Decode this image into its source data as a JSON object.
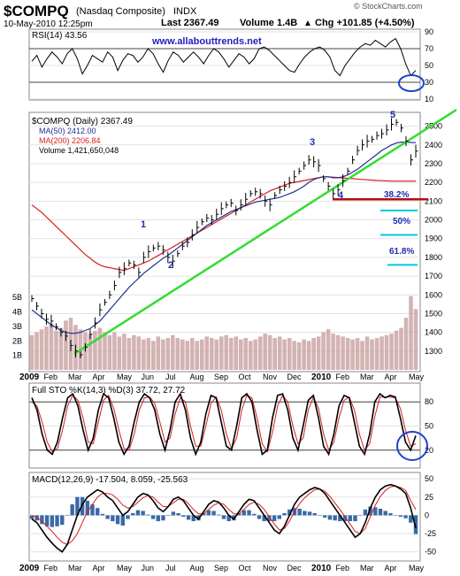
{
  "header": {
    "title": "$COMPQ",
    "subtitle": "(Nasdaq Composite)",
    "exchange": "INDX",
    "date": "10-May-2010 12:25pm",
    "last": "Last 2367.49",
    "volume": "Volume 1.4B",
    "change": "Chg +101.85 (+4.50%)",
    "change_dir": "▲",
    "watermark": "© StockCharts.com"
  },
  "colors": {
    "price": "#000000",
    "ma50": "#1f2f8f",
    "ma200": "#d42020",
    "trendline": "#33dd33",
    "fib": "#00c8e8",
    "support": "#b01010",
    "volume": "#c8a0a0",
    "macd_hist": "#3a6aa6",
    "url": "#2020c0",
    "circle": "#2040d0"
  },
  "chart_data": [
    {
      "type": "line",
      "name": "rsi-panel",
      "title": "RSI(14) 43.56",
      "ylim": [
        10,
        90
      ],
      "ticks": [
        "90",
        "70",
        "50",
        "30",
        "10"
      ],
      "ref_lines": [
        70,
        30
      ],
      "url_label": "www.allabouttrends.net",
      "series": [
        {
          "values": [
            55,
            62,
            48,
            58,
            66,
            60,
            52,
            64,
            70,
            58,
            40,
            50,
            62,
            58,
            54,
            66,
            60,
            44,
            56,
            64,
            62,
            54,
            60,
            70,
            64,
            52,
            42,
            56,
            66,
            62,
            54,
            60,
            66,
            60,
            52,
            62,
            70,
            66,
            58,
            48,
            56,
            64,
            60,
            52,
            58,
            70,
            72,
            68,
            62,
            56,
            50,
            44,
            42,
            52,
            60,
            66,
            70,
            72,
            68,
            60,
            44,
            38,
            50,
            58,
            66,
            72,
            76,
            74,
            80,
            76,
            72,
            78,
            82,
            70,
            52,
            38,
            44
          ]
        }
      ]
    },
    {
      "type": "line",
      "name": "price-panel",
      "title": "$COMPQ (Daily) 2367.49",
      "legend": [
        "MA(50) 2412.00",
        "MA(200) 2206.84",
        "Volume 1,421,650,048"
      ],
      "ylim": [
        1200,
        2550
      ],
      "ticks": [
        "2500",
        "2400",
        "2300",
        "2200",
        "2100",
        "2000",
        "1900",
        "1800",
        "1700",
        "1600",
        "1500",
        "1400",
        "1300"
      ],
      "volume_ticks": [
        "5B",
        "4B",
        "3B",
        "2B",
        "1B"
      ],
      "x_labels": [
        "2009",
        "Feb",
        "Mar",
        "Apr",
        "May",
        "Jun",
        "Jul",
        "Aug",
        "Sep",
        "Oct",
        "Nov",
        "Dec",
        "2010",
        "Feb",
        "Mar",
        "Apr",
        "May"
      ],
      "wave_labels": [
        "1",
        "2",
        "3",
        "4",
        "5"
      ],
      "fib_labels": [
        "38.2%",
        "50%",
        "61.8%"
      ],
      "fib_levels": [
        2050,
        1920,
        1760
      ],
      "support_level": 2110,
      "trendline": [
        [
          1290,
          "Mar"
        ],
        [
          2560,
          "May"
        ]
      ],
      "series": [
        {
          "name": "$COMPQ",
          "values": [
            1580,
            1540,
            1500,
            1470,
            1460,
            1430,
            1400,
            1380,
            1330,
            1300,
            1280,
            1320,
            1390,
            1450,
            1520,
            1560,
            1600,
            1650,
            1720,
            1740,
            1770,
            1760,
            1720,
            1800,
            1830,
            1850,
            1860,
            1840,
            1800,
            1780,
            1820,
            1860,
            1880,
            1920,
            1960,
            1990,
            2010,
            2000,
            2030,
            2060,
            2080,
            2090,
            2050,
            2080,
            2110,
            2140,
            2150,
            2140,
            2100,
            2080,
            2130,
            2160,
            2180,
            2200,
            2230,
            2260,
            2290,
            2320,
            2310,
            2290,
            2220,
            2180,
            2140,
            2160,
            2210,
            2260,
            2320,
            2370,
            2400,
            2420,
            2430,
            2450,
            2460,
            2480,
            2510,
            2520,
            2490,
            2420,
            2320,
            2367
          ]
        },
        {
          "name": "MA(50)",
          "values": [
            1520,
            1500,
            1480,
            1460,
            1440,
            1425,
            1410,
            1400,
            1395,
            1395,
            1400,
            1410,
            1420,
            1440,
            1460,
            1490,
            1520,
            1550,
            1580,
            1610,
            1640,
            1665,
            1690,
            1715,
            1735,
            1755,
            1775,
            1795,
            1810,
            1830,
            1850,
            1870,
            1890,
            1910,
            1930,
            1950,
            1970,
            1985,
            2000,
            2015,
            2030,
            2045,
            2055,
            2065,
            2075,
            2085,
            2095,
            2100,
            2105,
            2110,
            2115,
            2120,
            2130,
            2140,
            2150,
            2165,
            2180,
            2200,
            2215,
            2225,
            2230,
            2230,
            2225,
            2225,
            2230,
            2240,
            2255,
            2270,
            2290,
            2310,
            2330,
            2350,
            2370,
            2385,
            2400,
            2410,
            2415,
            2415,
            2413,
            2412
          ]
        },
        {
          "name": "MA(200)",
          "values": [
            2080,
            2060,
            2040,
            2015,
            1990,
            1965,
            1940,
            1915,
            1890,
            1865,
            1840,
            1815,
            1795,
            1775,
            1760,
            1750,
            1745,
            1740,
            1735,
            1730,
            1740,
            1750,
            1760,
            1770,
            1780,
            1795,
            1810,
            1825,
            1840,
            1855,
            1870,
            1885,
            1900,
            1915,
            1930,
            1945,
            1960,
            1975,
            1990,
            2005,
            2020,
            2035,
            2050,
            2065,
            2080,
            2095,
            2110,
            2125,
            2140,
            2155,
            2165,
            2175,
            2185,
            2195,
            2200,
            2205,
            2210,
            2215,
            2220,
            2225,
            2230,
            2230,
            2228,
            2226,
            2224,
            2222,
            2220,
            2218,
            2216,
            2214,
            2212,
            2210,
            2209,
            2208,
            2207,
            2207,
            2207,
            2207,
            2207,
            2207
          ]
        },
        {
          "name": "Volume",
          "values": [
            2.4,
            2.6,
            2.8,
            3.0,
            3.2,
            2.7,
            2.9,
            3.4,
            3.6,
            3.1,
            2.8,
            2.6,
            2.5,
            2.7,
            2.9,
            2.6,
            2.4,
            2.6,
            2.3,
            2.5,
            2.2,
            2.4,
            2.3,
            2.1,
            2.2,
            2.0,
            2.3,
            2.1,
            2.2,
            2.4,
            2.2,
            2.1,
            2.0,
            2.2,
            2.0,
            2.1,
            2.3,
            2.2,
            2.1,
            2.3,
            2.4,
            2.2,
            2.3,
            2.1,
            2.2,
            2.0,
            2.1,
            2.3,
            2.5,
            2.4,
            2.2,
            2.3,
            2.1,
            2.2,
            2.0,
            1.9,
            2.1,
            2.0,
            2.2,
            2.3,
            2.6,
            2.8,
            2.5,
            2.4,
            2.3,
            2.2,
            2.1,
            2.2,
            2.0,
            2.3,
            2.1,
            2.2,
            2.3,
            2.4,
            2.5,
            2.7,
            2.9,
            3.6,
            5.1,
            4.2
          ]
        }
      ]
    },
    {
      "type": "line",
      "name": "stochastic-panel",
      "title": "Full STO %K(14,3) %D(3) 37.72, 27.72",
      "ylim": [
        0,
        100
      ],
      "ticks": [
        "80",
        "50",
        "20"
      ],
      "series": [
        {
          "name": "%K",
          "values": [
            85,
            70,
            40,
            20,
            15,
            30,
            60,
            85,
            90,
            75,
            45,
            20,
            35,
            70,
            90,
            85,
            60,
            30,
            15,
            25,
            55,
            80,
            90,
            85,
            70,
            40,
            20,
            45,
            80,
            90,
            70,
            35,
            15,
            30,
            65,
            88,
            85,
            55,
            25,
            20,
            50,
            85,
            90,
            80,
            45,
            15,
            20,
            60,
            88,
            90,
            70,
            35,
            20,
            50,
            82,
            88,
            60,
            25,
            15,
            40,
            75,
            88,
            85,
            55,
            25,
            15,
            40,
            80,
            90,
            85,
            88,
            86,
            60,
            30,
            20,
            38
          ]
        },
        {
          "name": "%D",
          "values": [
            80,
            75,
            55,
            30,
            18,
            22,
            45,
            75,
            88,
            82,
            60,
            30,
            28,
            55,
            82,
            88,
            72,
            45,
            22,
            20,
            40,
            70,
            85,
            86,
            78,
            55,
            30,
            35,
            65,
            85,
            80,
            50,
            25,
            25,
            50,
            78,
            86,
            70,
            40,
            22,
            35,
            70,
            88,
            85,
            60,
            28,
            18,
            42,
            75,
            88,
            80,
            50,
            28,
            35,
            70,
            86,
            72,
            40,
            20,
            30,
            60,
            82,
            86,
            70,
            40,
            20,
            28,
            62,
            86,
            86,
            86,
            85,
            72,
            45,
            25,
            28
          ]
        }
      ]
    },
    {
      "type": "line",
      "name": "macd-panel",
      "title": "MACD(12,26,9) -17.504, 8.059, -25.563",
      "ylim": [
        -60,
        55
      ],
      "ticks": [
        "50",
        "25",
        "0",
        "-25",
        "-50"
      ],
      "series": [
        {
          "name": "MACD",
          "values": [
            -5,
            -10,
            -20,
            -30,
            -38,
            -45,
            -50,
            -40,
            -20,
            0,
            15,
            25,
            30,
            35,
            32,
            25,
            20,
            10,
            0,
            5,
            15,
            25,
            30,
            28,
            20,
            10,
            5,
            12,
            22,
            25,
            20,
            10,
            0,
            -5,
            5,
            15,
            20,
            18,
            10,
            0,
            -5,
            5,
            15,
            22,
            20,
            10,
            0,
            -10,
            -20,
            -25,
            -15,
            0,
            15,
            25,
            30,
            35,
            38,
            36,
            30,
            20,
            10,
            0,
            -10,
            -20,
            -30,
            -25,
            -10,
            10,
            25,
            35,
            40,
            42,
            40,
            36,
            30,
            10,
            -17.5
          ]
        },
        {
          "name": "Signal",
          "values": [
            0,
            -3,
            -8,
            -15,
            -22,
            -30,
            -37,
            -40,
            -35,
            -25,
            -10,
            5,
            15,
            25,
            30,
            30,
            28,
            22,
            14,
            10,
            12,
            18,
            24,
            27,
            25,
            18,
            12,
            12,
            17,
            22,
            22,
            16,
            8,
            2,
            2,
            8,
            14,
            17,
            15,
            8,
            2,
            2,
            8,
            15,
            18,
            15,
            8,
            -2,
            -12,
            -20,
            -18,
            -8,
            5,
            16,
            24,
            30,
            35,
            36,
            33,
            26,
            17,
            8,
            -2,
            -12,
            -22,
            -25,
            -18,
            -2,
            14,
            26,
            34,
            39,
            40,
            38,
            34,
            20,
            8.1
          ]
        },
        {
          "name": "Histogram",
          "values": [
            -5,
            -7,
            -12,
            -15,
            -16,
            -15,
            -13,
            0,
            15,
            25,
            25,
            20,
            15,
            10,
            2,
            -5,
            -8,
            -12,
            -14,
            -5,
            3,
            7,
            6,
            1,
            -5,
            -8,
            -7,
            0,
            5,
            3,
            -2,
            -6,
            -8,
            -7,
            3,
            7,
            6,
            1,
            -5,
            -8,
            -7,
            3,
            7,
            7,
            2,
            -5,
            -8,
            -8,
            -8,
            -5,
            3,
            8,
            10,
            9,
            6,
            5,
            3,
            0,
            -3,
            -6,
            -7,
            -8,
            -8,
            -8,
            -8,
            0,
            8,
            12,
            11,
            9,
            6,
            3,
            0,
            -2,
            -4,
            -10,
            -25.6
          ]
        }
      ]
    }
  ]
}
